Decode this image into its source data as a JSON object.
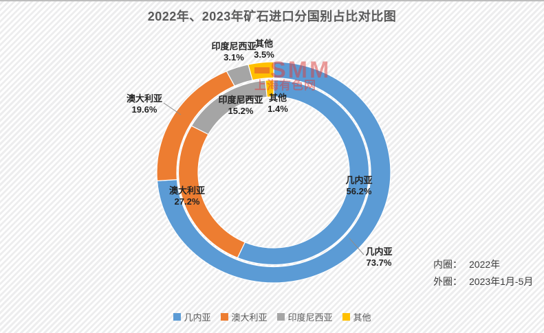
{
  "title": "2022年、2023年矿石进口分国别占比对比图",
  "watermark": {
    "logo": "SMM",
    "subtitle": "上海有色网",
    "color": "#de3e3a"
  },
  "chart_data": {
    "type": "donut",
    "title": "2022年、2023年矿石进口分国别占比对比图",
    "categories": [
      "几内亚",
      "澳大利亚",
      "印度尼西亚",
      "其他"
    ],
    "colors": [
      "#5B9BD5",
      "#ED7D31",
      "#A5A5A5",
      "#FFC000"
    ],
    "rings": [
      {
        "name": "内圈",
        "period": "2022年",
        "values": [
          56.2,
          27.2,
          15.2,
          1.4
        ]
      },
      {
        "name": "外圈",
        "period": "2023年1月-5月",
        "values": [
          73.7,
          19.6,
          3.1,
          3.5
        ]
      }
    ],
    "start_angle_deg": 0,
    "direction": "clockwise",
    "legend_position": "bottom"
  },
  "callouts": {
    "outer_indonesia": {
      "label": "印度尼西亚",
      "pct": "3.1%"
    },
    "outer_other": {
      "label": "其他",
      "pct": "3.5%"
    },
    "outer_australia": {
      "label": "澳大利亚",
      "pct": "19.6%"
    },
    "outer_guinea": {
      "label": "几内亚",
      "pct": "73.7%"
    },
    "inner_indonesia": {
      "label": "印度尼西亚",
      "pct": "15.2%"
    },
    "inner_other": {
      "label": "其他",
      "pct": "1.4%"
    },
    "inner_australia": {
      "label": "澳大利亚",
      "pct": "27.2%"
    },
    "inner_guinea": {
      "label": "几内亚",
      "pct": "56.2%"
    }
  },
  "ring_note": {
    "rows": [
      {
        "label": "内圈：",
        "value": "2022年"
      },
      {
        "label": "外圈：",
        "value": "2023年1月-5月"
      }
    ]
  },
  "legend": {
    "items": [
      {
        "label": "几内亚",
        "color": "#5B9BD5"
      },
      {
        "label": "澳大利亚",
        "color": "#ED7D31"
      },
      {
        "label": "印度尼西亚",
        "color": "#A5A5A5"
      },
      {
        "label": "其他",
        "color": "#FFC000"
      }
    ]
  }
}
